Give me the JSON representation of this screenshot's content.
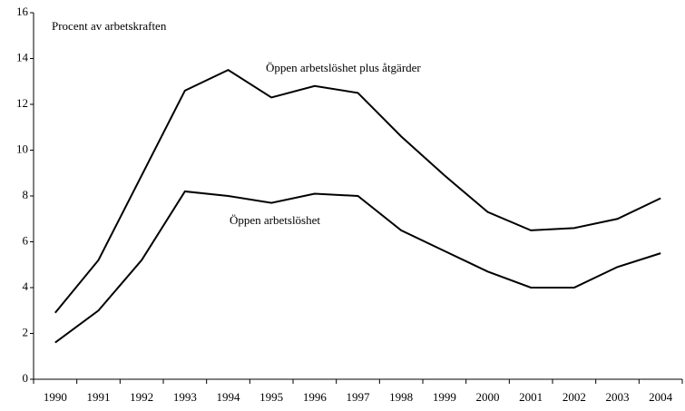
{
  "chart_data": {
    "type": "line",
    "y_label": "Procent av arbetskraften",
    "categories": [
      "1990",
      "1991",
      "1992",
      "1993",
      "1994",
      "1995",
      "1996",
      "1997",
      "1998",
      "1999",
      "2000",
      "2001",
      "2002",
      "2003",
      "2004"
    ],
    "series": [
      {
        "name": "Öppen arbetslöshet plus åtgärder",
        "color": "#000000",
        "values": [
          2.9,
          5.2,
          8.9,
          12.6,
          13.5,
          12.3,
          12.8,
          12.5,
          10.6,
          8.9,
          7.3,
          6.5,
          6.6,
          7.0,
          7.9
        ]
      },
      {
        "name": "Öppen arbetslöshet",
        "color": "#000000",
        "values": [
          1.6,
          3.0,
          5.2,
          8.2,
          8.0,
          7.7,
          8.1,
          8.0,
          6.5,
          5.6,
          4.7,
          4.0,
          4.0,
          4.9,
          5.5
        ]
      }
    ],
    "ylim": [
      0,
      16
    ],
    "yticks": [
      0,
      2,
      4,
      6,
      8,
      10,
      12,
      14,
      16
    ],
    "grid": false
  }
}
